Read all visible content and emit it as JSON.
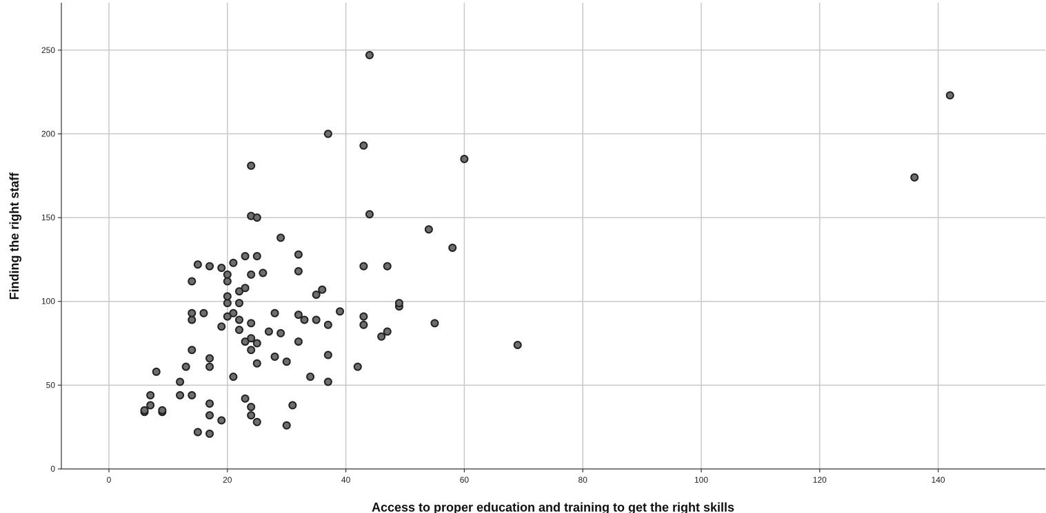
{
  "chart_data": {
    "type": "scatter",
    "title": "",
    "xlabel": "Access to proper education and training to get the right skills",
    "ylabel": "Finding the right staff",
    "xlim": [
      -8,
      155
    ],
    "ylim": [
      0,
      278
    ],
    "x_ticks": [
      0,
      20,
      40,
      60,
      80,
      100,
      120,
      140
    ],
    "y_ticks": [
      0,
      50,
      100,
      150,
      200,
      250
    ],
    "grid": true,
    "legend": "none",
    "colors": {
      "point_fill": "#6e6e6e",
      "point_stroke": "#222222",
      "grid": "#c8c8c8"
    },
    "series": [
      {
        "points": [
          [
            6,
            34
          ],
          [
            6,
            35
          ],
          [
            7,
            38
          ],
          [
            7,
            44
          ],
          [
            8,
            58
          ],
          [
            9,
            34
          ],
          [
            9,
            35
          ],
          [
            12,
            44
          ],
          [
            12,
            52
          ],
          [
            13,
            61
          ],
          [
            14,
            44
          ],
          [
            14,
            71
          ],
          [
            14,
            89
          ],
          [
            14,
            93
          ],
          [
            14,
            112
          ],
          [
            15,
            22
          ],
          [
            15,
            122
          ],
          [
            16,
            93
          ],
          [
            17,
            21
          ],
          [
            17,
            32
          ],
          [
            17,
            39
          ],
          [
            17,
            61
          ],
          [
            17,
            66
          ],
          [
            17,
            121
          ],
          [
            19,
            29
          ],
          [
            19,
            85
          ],
          [
            19,
            120
          ],
          [
            20,
            91
          ],
          [
            20,
            99
          ],
          [
            20,
            103
          ],
          [
            20,
            112
          ],
          [
            20,
            116
          ],
          [
            21,
            55
          ],
          [
            21,
            93
          ],
          [
            21,
            123
          ],
          [
            22,
            83
          ],
          [
            22,
            89
          ],
          [
            22,
            99
          ],
          [
            22,
            106
          ],
          [
            23,
            42
          ],
          [
            23,
            76
          ],
          [
            23,
            108
          ],
          [
            23,
            127
          ],
          [
            24,
            32
          ],
          [
            24,
            37
          ],
          [
            24,
            71
          ],
          [
            24,
            78
          ],
          [
            24,
            87
          ],
          [
            24,
            116
          ],
          [
            24,
            151
          ],
          [
            24,
            181
          ],
          [
            25,
            28
          ],
          [
            25,
            63
          ],
          [
            25,
            75
          ],
          [
            25,
            127
          ],
          [
            25,
            150
          ],
          [
            26,
            117
          ],
          [
            27,
            82
          ],
          [
            28,
            67
          ],
          [
            28,
            93
          ],
          [
            29,
            81
          ],
          [
            29,
            138
          ],
          [
            30,
            26
          ],
          [
            30,
            64
          ],
          [
            31,
            38
          ],
          [
            32,
            76
          ],
          [
            32,
            92
          ],
          [
            32,
            118
          ],
          [
            32,
            128
          ],
          [
            33,
            89
          ],
          [
            34,
            55
          ],
          [
            35,
            89
          ],
          [
            35,
            104
          ],
          [
            36,
            107
          ],
          [
            37,
            52
          ],
          [
            37,
            68
          ],
          [
            37,
            86
          ],
          [
            37,
            200
          ],
          [
            39,
            94
          ],
          [
            42,
            61
          ],
          [
            43,
            86
          ],
          [
            43,
            91
          ],
          [
            43,
            121
          ],
          [
            43,
            193
          ],
          [
            44,
            152
          ],
          [
            44,
            247
          ],
          [
            46,
            79
          ],
          [
            47,
            82
          ],
          [
            47,
            121
          ],
          [
            49,
            97
          ],
          [
            49,
            99
          ],
          [
            54,
            143
          ],
          [
            55,
            87
          ],
          [
            58,
            132
          ],
          [
            60,
            185
          ],
          [
            69,
            74
          ],
          [
            136,
            174
          ],
          [
            142,
            223
          ]
        ]
      }
    ]
  }
}
